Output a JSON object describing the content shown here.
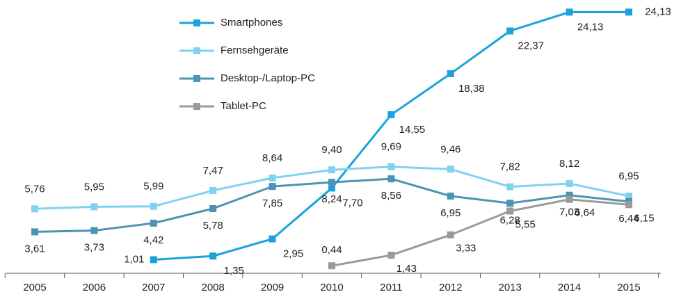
{
  "chart_data": {
    "type": "line",
    "categories": [
      "2005",
      "2006",
      "2007",
      "2008",
      "2009",
      "2010",
      "2011",
      "2012",
      "2013",
      "2014",
      "2015"
    ],
    "ylim": [
      0,
      25
    ],
    "series": [
      {
        "name": "Smartphones",
        "color": "#1ba1dc",
        "values": [
          null,
          null,
          1.01,
          1.35,
          2.95,
          7.7,
          14.55,
          18.38,
          22.37,
          24.13,
          24.13
        ],
        "value_labels": [
          null,
          null,
          "1,01",
          "1,35",
          "2,95",
          "7,70",
          "14,55",
          "18,38",
          "22,37",
          "24,13",
          "24,13"
        ]
      },
      {
        "name": "Fernsehgeräte",
        "color": "#7fd2f2",
        "values": [
          5.76,
          5.95,
          5.99,
          7.47,
          8.64,
          9.4,
          9.69,
          9.46,
          7.82,
          8.12,
          6.95
        ],
        "value_labels": [
          "5,76",
          "5,95",
          "5,99",
          "7,47",
          "8,64",
          "9,40",
          "9,69",
          "9,46",
          "7,82",
          "8,12",
          "6,95"
        ]
      },
      {
        "name": "Desktop-/Laptop-PC",
        "color": "#4d93b3",
        "values": [
          3.61,
          3.73,
          4.42,
          5.78,
          7.85,
          8.24,
          8.56,
          6.95,
          6.28,
          7.03,
          6.44
        ],
        "value_labels": [
          "3,61",
          "3,73",
          "4,42",
          "5,78",
          "7,85",
          "8,24",
          "8,56",
          "6,95",
          "6,28",
          "7,03",
          "6,44"
        ]
      },
      {
        "name": "Tablet-PC",
        "color": "#9a9a9a",
        "values": [
          null,
          null,
          null,
          null,
          null,
          0.44,
          1.43,
          3.33,
          5.55,
          6.64,
          6.15
        ],
        "value_labels": [
          null,
          null,
          null,
          null,
          null,
          "0,44",
          "1,43",
          "3,33",
          "5,55",
          "6,64",
          "6,15"
        ]
      }
    ]
  }
}
